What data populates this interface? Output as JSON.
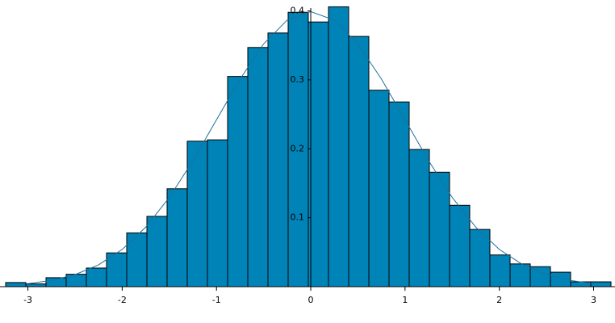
{
  "chart_data": {
    "type": "histogram",
    "bins": [
      -3.236,
      -3.022,
      -2.808,
      -2.594,
      -2.38,
      -2.166,
      -1.952,
      -1.738,
      -1.524,
      -1.31,
      -1.096,
      -0.882,
      -0.668,
      -0.454,
      -0.24,
      -0.026,
      0.188,
      0.402,
      0.616,
      0.83,
      1.044,
      1.258,
      1.472,
      1.686,
      1.9,
      2.114,
      2.328,
      2.542,
      2.756,
      2.97,
      3.184
    ],
    "values": [
      0.006,
      0.004,
      0.013,
      0.018,
      0.027,
      0.049,
      0.078,
      0.102,
      0.142,
      0.211,
      0.213,
      0.305,
      0.347,
      0.368,
      0.398,
      0.384,
      0.406,
      0.363,
      0.285,
      0.268,
      0.199,
      0.166,
      0.118,
      0.083,
      0.046,
      0.033,
      0.029,
      0.021,
      0.007,
      0.007
    ],
    "color": "#0084b8",
    "curve": {
      "color": "#1f6f9a",
      "x": [
        -3,
        -2.75,
        -2.5,
        -2.25,
        -2,
        -1.75,
        -1.5,
        -1.25,
        -1,
        -0.75,
        -0.5,
        -0.25,
        0,
        0.25,
        0.5,
        0.75,
        1,
        1.25,
        1.5,
        1.75,
        2,
        2.25,
        2.5,
        2.75,
        3
      ],
      "y": [
        0.0044,
        0.0091,
        0.0175,
        0.0317,
        0.054,
        0.0863,
        0.1295,
        0.1826,
        0.242,
        0.3011,
        0.3521,
        0.3867,
        0.399,
        0.3867,
        0.3521,
        0.3011,
        0.242,
        0.1826,
        0.1295,
        0.0863,
        0.054,
        0.0317,
        0.0175,
        0.0091,
        0.0044
      ]
    },
    "xlim": [
      -3.236,
      3.184
    ],
    "ylim": [
      0,
      0.41
    ],
    "xticks": [
      -3,
      -2,
      -1,
      0,
      1,
      2,
      3
    ],
    "yticks": [
      0.1,
      0.2,
      0.3,
      0.4
    ]
  }
}
